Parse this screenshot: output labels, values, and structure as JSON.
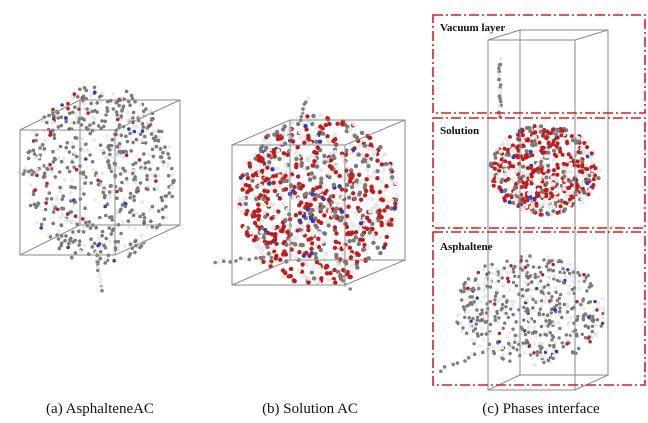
{
  "panels": [
    {
      "caption": "(a) AsphalteneAC"
    },
    {
      "caption": "(b) Solution AC"
    },
    {
      "caption": "(c) Phases interface",
      "regions": [
        "Vacuum layer",
        "Solution",
        "Asphaltene"
      ]
    }
  ]
}
